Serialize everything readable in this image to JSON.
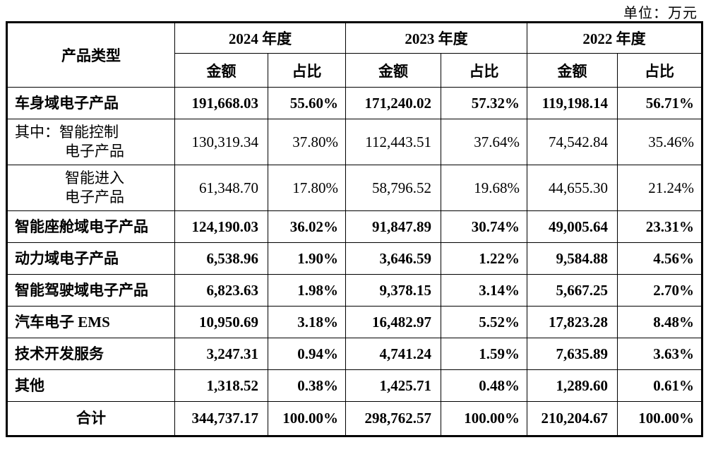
{
  "unit_label": "单位：万元",
  "table": {
    "product_header": "产品类型",
    "amount_label": "金额",
    "ratio_label": "占比",
    "year_groups": [
      "2024 年度",
      "2023 年度",
      "2022 年度"
    ],
    "rows": [
      {
        "lines": [
          "车身域电子产品"
        ],
        "align": "left",
        "bold": true,
        "total": false,
        "v": [
          "191,668.03",
          "55.60%",
          "171,240.02",
          "57.32%",
          "119,198.14",
          "56.71%"
        ]
      },
      {
        "lines": [
          "其中：智能控制",
          "电子产品"
        ],
        "align": "mixed",
        "bold": false,
        "total": false,
        "v": [
          "130,319.34",
          "37.80%",
          "112,443.51",
          "37.64%",
          "74,542.84",
          "35.46%"
        ]
      },
      {
        "lines": [
          "智能进入",
          "电子产品"
        ],
        "align": "center",
        "bold": false,
        "total": false,
        "v": [
          "61,348.70",
          "17.80%",
          "58,796.52",
          "19.68%",
          "44,655.30",
          "21.24%"
        ]
      },
      {
        "lines": [
          "智能座舱域电子产品"
        ],
        "align": "left",
        "bold": true,
        "total": false,
        "v": [
          "124,190.03",
          "36.02%",
          "91,847.89",
          "30.74%",
          "49,005.64",
          "23.31%"
        ]
      },
      {
        "lines": [
          "动力域电子产品"
        ],
        "align": "left",
        "bold": true,
        "total": false,
        "v": [
          "6,538.96",
          "1.90%",
          "3,646.59",
          "1.22%",
          "9,584.88",
          "4.56%"
        ]
      },
      {
        "lines": [
          "智能驾驶域电子产品"
        ],
        "align": "left",
        "bold": true,
        "total": false,
        "v": [
          "6,823.63",
          "1.98%",
          "9,378.15",
          "3.14%",
          "5,667.25",
          "2.70%"
        ]
      },
      {
        "lines": [
          "汽车电子 EMS"
        ],
        "align": "left",
        "bold": true,
        "total": false,
        "v": [
          "10,950.69",
          "3.18%",
          "16,482.97",
          "5.52%",
          "17,823.28",
          "8.48%"
        ]
      },
      {
        "lines": [
          "技术开发服务"
        ],
        "align": "left",
        "bold": true,
        "total": false,
        "v": [
          "3,247.31",
          "0.94%",
          "4,741.24",
          "1.59%",
          "7,635.89",
          "3.63%"
        ]
      },
      {
        "lines": [
          "其他"
        ],
        "align": "left",
        "bold": true,
        "total": false,
        "v": [
          "1,318.52",
          "0.38%",
          "1,425.71",
          "0.48%",
          "1,289.60",
          "0.61%"
        ]
      },
      {
        "lines": [
          "合计"
        ],
        "align": "center",
        "bold": true,
        "total": true,
        "v": [
          "344,737.17",
          "100.00%",
          "298,762.57",
          "100.00%",
          "210,204.67",
          "100.00%"
        ]
      }
    ]
  }
}
